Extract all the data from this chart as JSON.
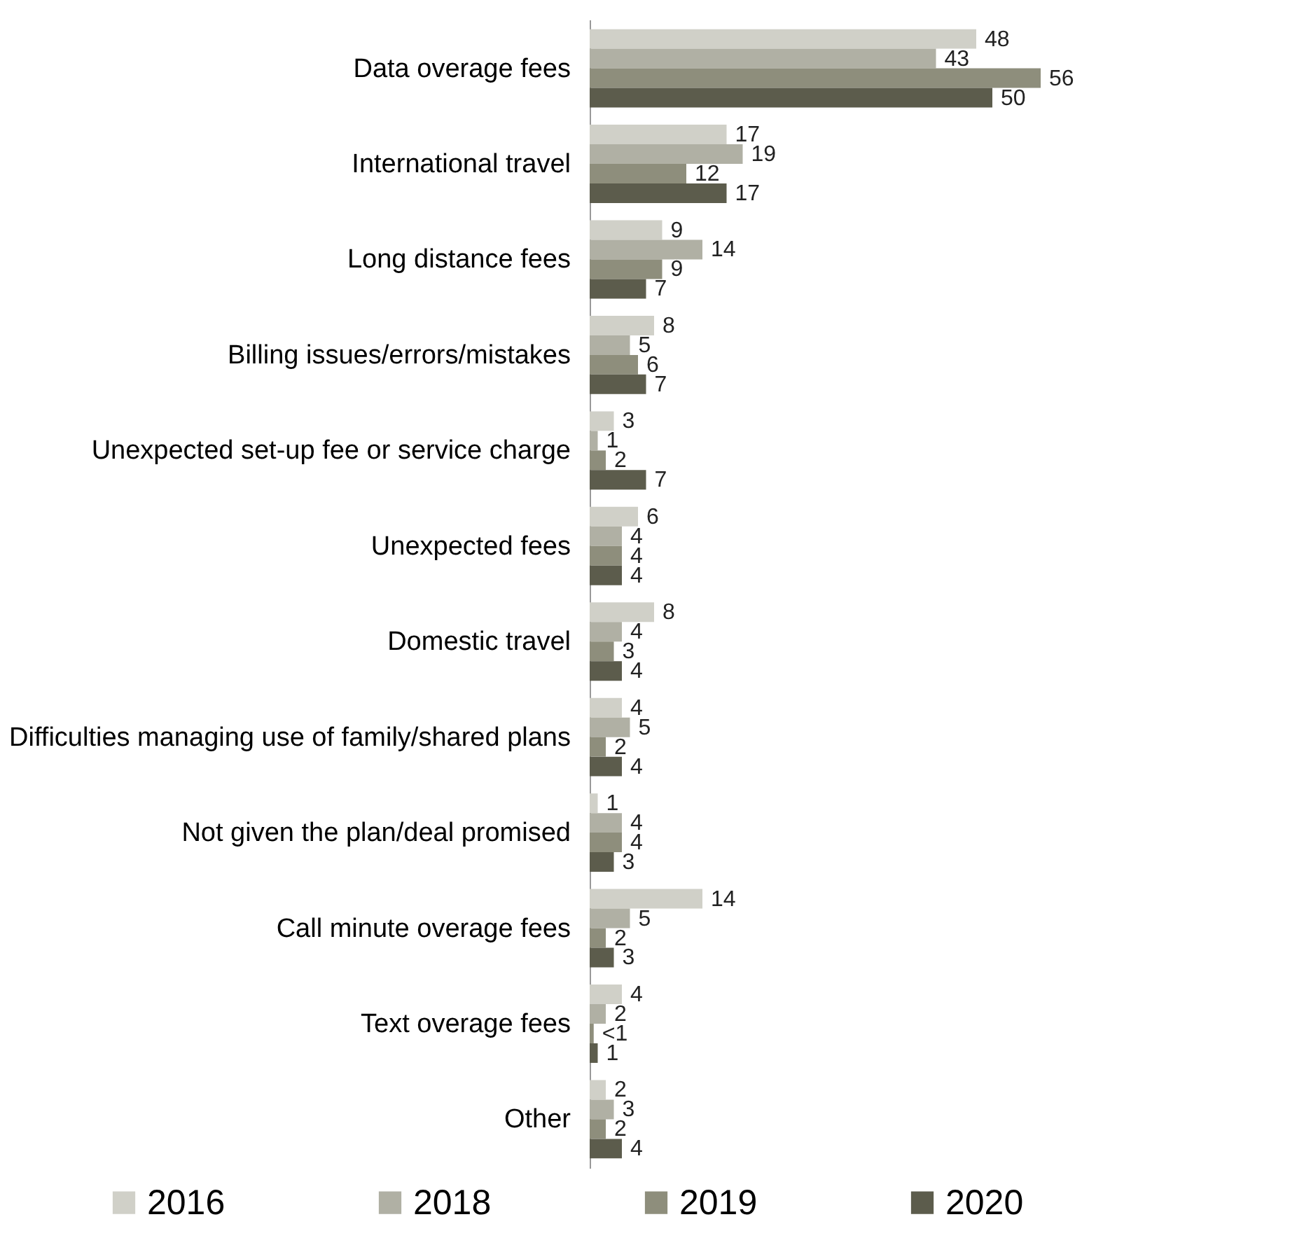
{
  "chart_data": {
    "type": "bar",
    "orientation": "horizontal",
    "legend": "bottom",
    "grid": false,
    "categories": [
      "Data overage fees",
      "International travel",
      "Long distance fees",
      "Billing issues/errors/mistakes",
      "Unexpected set-up fee or service charge",
      "Unexpected fees",
      "Domestic travel",
      "Difficulties managing use of family/shared plans",
      "Not given the plan/deal promised",
      "Call minute overage fees",
      "Text overage fees",
      "Other"
    ],
    "series": [
      {
        "name": "2016",
        "color": "#d0d0c8",
        "values": [
          48,
          17,
          9,
          8,
          3,
          6,
          8,
          4,
          1,
          14,
          4,
          2
        ],
        "value_labels": [
          "48",
          "17",
          "9",
          "8",
          "3",
          "6",
          "8",
          "4",
          "1",
          "14",
          "4",
          "2"
        ]
      },
      {
        "name": "2018",
        "color": "#b0b0a4",
        "values": [
          43,
          19,
          14,
          5,
          1,
          4,
          4,
          5,
          4,
          5,
          2,
          3
        ],
        "value_labels": [
          "43",
          "19",
          "14",
          "5",
          "1",
          "4",
          "4",
          "5",
          "4",
          "5",
          "2",
          "3"
        ]
      },
      {
        "name": "2019",
        "color": "#8e8e7c",
        "values": [
          56,
          12,
          9,
          6,
          2,
          4,
          3,
          2,
          4,
          2,
          0.5,
          2
        ],
        "value_labels": [
          "56",
          "12",
          "9",
          "6",
          "2",
          "4",
          "3",
          "2",
          "4",
          "2",
          "<1",
          "2"
        ]
      },
      {
        "name": "2020",
        "color": "#5c5c4c",
        "values": [
          50,
          17,
          7,
          7,
          7,
          4,
          4,
          4,
          3,
          3,
          1,
          4
        ],
        "value_labels": [
          "50",
          "17",
          "7",
          "7",
          "7",
          "4",
          "4",
          "4",
          "3",
          "3",
          "1",
          "4"
        ]
      }
    ]
  }
}
